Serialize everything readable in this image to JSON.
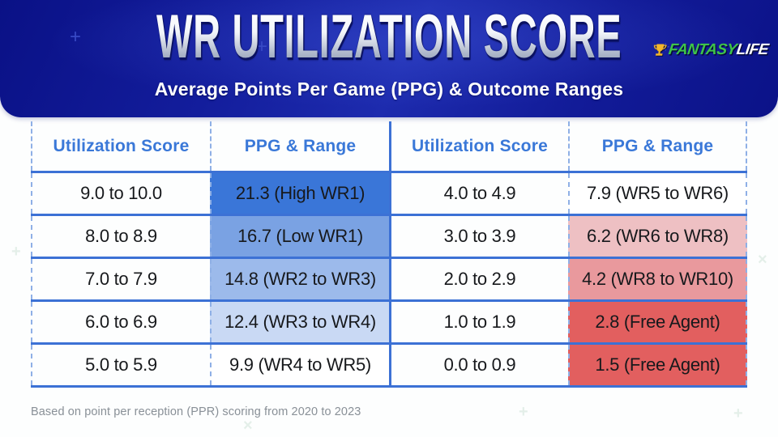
{
  "header": {
    "title": "WR UTILIZATION SCORE",
    "subtitle": "Average Points Per Game (PPG) & Outcome Ranges",
    "logo": {
      "part1": "FANTASY",
      "part2": "LIFE",
      "icon": "trophy-icon"
    }
  },
  "table": {
    "headers": [
      "Utilization Score",
      "PPG & Range",
      "Utilization Score",
      "PPG & Range"
    ],
    "rows": [
      {
        "l_score": "9.0 to 10.0",
        "l_ppg": "21.3 (High WR1)",
        "l_bg": "#3a76d8",
        "r_score": "4.0 to 4.9",
        "r_ppg": "7.9 (WR5 to WR6)",
        "r_bg": "#ffffff"
      },
      {
        "l_score": "8.0 to 8.9",
        "l_ppg": "16.7 (Low WR1)",
        "l_bg": "#7aa2e3",
        "r_score": "3.0 to 3.9",
        "r_ppg": "6.2 (WR6 to WR8)",
        "r_bg": "#eec0c3"
      },
      {
        "l_score": "7.0 to 7.9",
        "l_ppg": "14.8 (WR2 to WR3)",
        "l_bg": "#9cbaeb",
        "r_score": "2.0 to 2.9",
        "r_ppg": "4.2 (WR8 to WR10)",
        "r_bg": "#e9999d"
      },
      {
        "l_score": "6.0 to 6.9",
        "l_ppg": "12.4 (WR3 to WR4)",
        "l_bg": "#c9d9f4",
        "r_score": "1.0 to 1.9",
        "r_ppg": "2.8 (Free Agent)",
        "r_bg": "#e25f5f"
      },
      {
        "l_score": "5.0 to 5.9",
        "l_ppg": "9.9 (WR4 to WR5)",
        "l_bg": "#ffffff",
        "r_score": "0.0 to 0.9",
        "r_ppg": "1.5 (Free Agent)",
        "r_bg": "#e25f5f"
      }
    ]
  },
  "footer": {
    "note": "Based on point per reception (PPR) scoring from 2020 to 2023"
  },
  "colors": {
    "banner_bg": "#131d9c",
    "solid_border_blue": "#3c71d5",
    "dashed_border_blue": "#8fb0e6",
    "header_text_blue": "#3a78d8",
    "cell_text": "#17191c",
    "footnote_gray": "#899097",
    "logo_green": "#3ec449",
    "logo_white": "#ffffff",
    "trophy_gold": "#f3b62a",
    "left_ppg_backgrounds": [
      "#3a76d8",
      "#7aa2e3",
      "#9cbaeb",
      "#c9d9f4",
      "#ffffff"
    ],
    "right_ppg_backgrounds": [
      "#ffffff",
      "#eec0c3",
      "#e9999d",
      "#e25f5f",
      "#e25f5f"
    ]
  },
  "chart_data": {
    "type": "table",
    "title": "WR Utilization Score",
    "subtitle": "Average Points Per Game (PPG) & Outcome Ranges",
    "columns": [
      "Utilization Score",
      "PPG & Range"
    ],
    "rows": [
      [
        "9.0 to 10.0",
        "21.3 (High WR1)"
      ],
      [
        "8.0 to 8.9",
        "16.7 (Low WR1)"
      ],
      [
        "7.0 to 7.9",
        "14.8 (WR2 to WR3)"
      ],
      [
        "6.0 to 6.9",
        "12.4 (WR3 to WR4)"
      ],
      [
        "5.0 to 5.9",
        "9.9 (WR4 to WR5)"
      ],
      [
        "4.0 to 4.9",
        "7.9 (WR5 to WR6)"
      ],
      [
        "3.0 to 3.9",
        "6.2 (WR6 to WR8)"
      ],
      [
        "2.0 to 2.9",
        "4.2 (WR8 to WR10)"
      ],
      [
        "1.0 to 1.9",
        "2.8 (Free Agent)"
      ],
      [
        "0.0 to 0.9",
        "1.5 (Free Agent)"
      ]
    ],
    "ppg_values": [
      21.3,
      16.7,
      14.8,
      12.4,
      9.9,
      7.9,
      6.2,
      4.2,
      2.8,
      1.5
    ],
    "note": "Based on point per reception (PPR) scoring from 2020 to 2023"
  }
}
